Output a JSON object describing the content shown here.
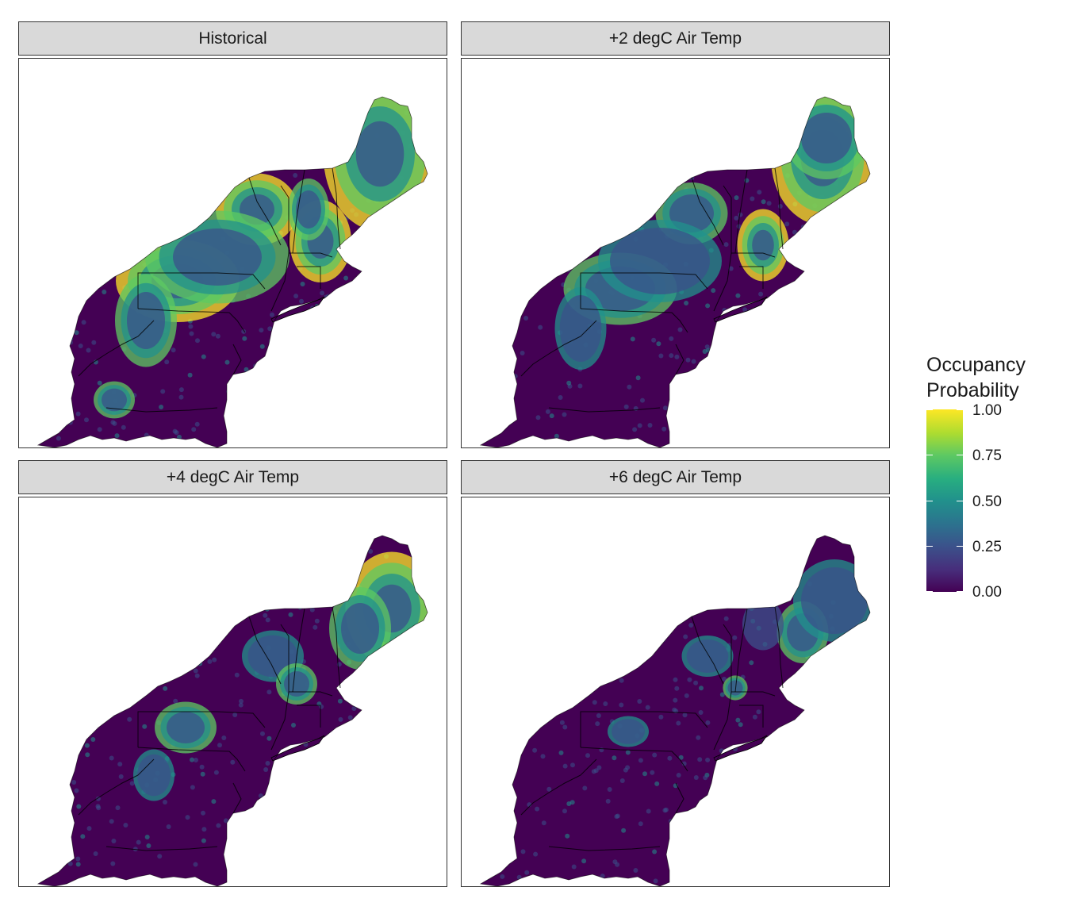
{
  "panels": [
    {
      "title": "Historical",
      "scenario": 0
    },
    {
      "title": "+2 degC Air Temp",
      "scenario": 1
    },
    {
      "title": "+4 degC Air Temp",
      "scenario": 2
    },
    {
      "title": "+6 degC Air Temp",
      "scenario": 3
    }
  ],
  "legend": {
    "title_line1": "Occupancy",
    "title_line2": "Probability",
    "ticks": [
      "1.00",
      "0.75",
      "0.50",
      "0.25",
      "0.00"
    ]
  },
  "colors": {
    "palette": [
      "#440154",
      "#3b528b",
      "#21918c",
      "#5ec962",
      "#fde725"
    ],
    "strip_background": "#d9d9d9",
    "state_borders": "#000000"
  }
}
